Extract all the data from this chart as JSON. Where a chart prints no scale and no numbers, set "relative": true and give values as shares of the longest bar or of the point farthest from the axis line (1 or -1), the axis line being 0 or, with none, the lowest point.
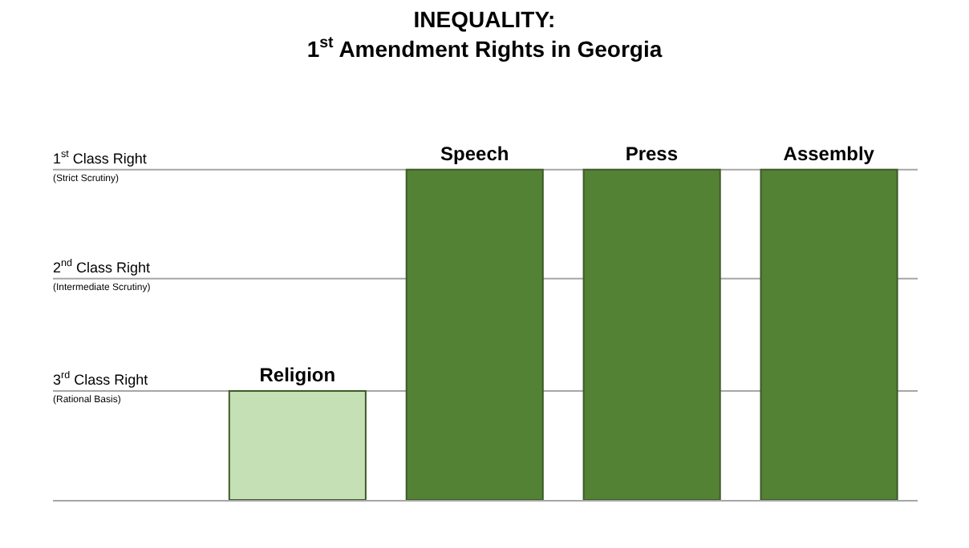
{
  "chart_data": {
    "type": "bar",
    "title": "INEQUALITY:\n1$^{st}$ Amendment Rights in Georgia",
    "categories": [
      "Religion",
      "Speech",
      "Press",
      "Assembly"
    ],
    "values": [
      0.33,
      1,
      1,
      1
    ],
    "relative": true,
    "colors": [
      "#c5e0b4",
      "#548235",
      "#548235",
      "#548235"
    ],
    "ref_lines": [
      {
        "axis": "y",
        "value": 0.33,
        "label": "3$^{rd}$ Class Right\n(Rational Basis)",
        "color": "#a6a6a6"
      },
      {
        "axis": "y",
        "value": 0.67,
        "label": "2$^{nd}$ Class Right\n(Intermediate Scrutiny)",
        "color": "#a6a6a6"
      },
      {
        "axis": "y",
        "value": 1,
        "label": "1$^{st}$ Class Right\n(Strict Scrutiny)",
        "color": "#a6a6a6"
      }
    ]
  }
}
